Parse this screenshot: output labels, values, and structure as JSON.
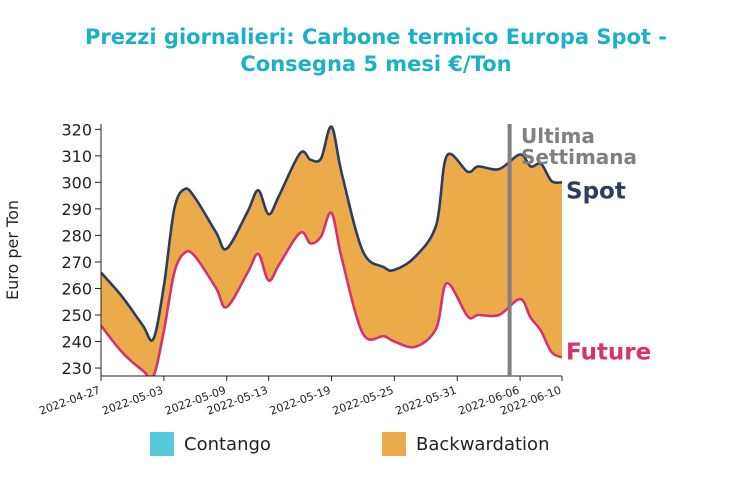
{
  "title_line1": "Prezzi giornalieri: Carbone termico Europa Spot -",
  "title_line2": "Consegna 5 mesi €/Ton",
  "colors": {
    "title": "#1ab0c8",
    "spot": "#2b3d63",
    "future": "#d6336c",
    "backwardation": "#ebab4b",
    "contango": "#58c8dc",
    "marker": "#808080"
  },
  "legend": {
    "contango": "Contango",
    "backwardation": "Backwardation"
  },
  "chart_data": {
    "type": "area",
    "ylabel": "Euro per Ton",
    "xlabel": "",
    "ylim": [
      227,
      322
    ],
    "xlim": [
      "2022-04-27",
      "2022-06-10"
    ],
    "yticks": [
      230,
      240,
      250,
      260,
      270,
      280,
      290,
      300,
      310,
      320
    ],
    "xticks": [
      "2022-04-27",
      "2022-05-03",
      "2022-05-09",
      "2022-05-13",
      "2022-05-19",
      "2022-05-25",
      "2022-05-31",
      "2022-06-06",
      "2022-06-10"
    ],
    "marker": {
      "x": "2022-06-05",
      "label_line1": "Ultima",
      "label_line2": "Settimana"
    },
    "series": [
      {
        "name": "Spot",
        "points": [
          [
            "2022-04-27",
            266
          ],
          [
            "2022-04-29",
            257
          ],
          [
            "2022-05-01",
            246
          ],
          [
            "2022-05-02",
            241
          ],
          [
            "2022-05-03",
            261
          ],
          [
            "2022-05-04",
            290
          ],
          [
            "2022-05-05",
            297.5
          ],
          [
            "2022-05-06",
            294
          ],
          [
            "2022-05-08",
            281
          ],
          [
            "2022-05-09",
            275
          ],
          [
            "2022-05-11",
            289
          ],
          [
            "2022-05-12",
            297
          ],
          [
            "2022-05-13",
            288
          ],
          [
            "2022-05-14",
            295
          ],
          [
            "2022-05-16",
            311
          ],
          [
            "2022-05-17",
            308.5
          ],
          [
            "2022-05-18",
            309
          ],
          [
            "2022-05-19",
            321
          ],
          [
            "2022-05-20",
            303
          ],
          [
            "2022-05-22",
            274
          ],
          [
            "2022-05-24",
            268
          ],
          [
            "2022-05-25",
            267
          ],
          [
            "2022-05-27",
            272
          ],
          [
            "2022-05-29",
            284
          ],
          [
            "2022-05-30",
            310
          ],
          [
            "2022-06-01",
            304
          ],
          [
            "2022-06-02",
            306
          ],
          [
            "2022-06-04",
            305
          ],
          [
            "2022-06-06",
            310.5
          ],
          [
            "2022-06-07",
            306
          ],
          [
            "2022-06-08",
            307
          ],
          [
            "2022-06-09",
            300.5
          ],
          [
            "2022-06-10",
            300
          ]
        ]
      },
      {
        "name": "Future",
        "points": [
          [
            "2022-04-27",
            246
          ],
          [
            "2022-04-29",
            236
          ],
          [
            "2022-05-01",
            229
          ],
          [
            "2022-05-02",
            227
          ],
          [
            "2022-05-03",
            244
          ],
          [
            "2022-05-04",
            266
          ],
          [
            "2022-05-05",
            273.5
          ],
          [
            "2022-05-06",
            272
          ],
          [
            "2022-05-08",
            260
          ],
          [
            "2022-05-09",
            253
          ],
          [
            "2022-05-11",
            266
          ],
          [
            "2022-05-12",
            273
          ],
          [
            "2022-05-13",
            263
          ],
          [
            "2022-05-14",
            269
          ],
          [
            "2022-05-16",
            281
          ],
          [
            "2022-05-17",
            277
          ],
          [
            "2022-05-18",
            279.5
          ],
          [
            "2022-05-19",
            288.5
          ],
          [
            "2022-05-20",
            271
          ],
          [
            "2022-05-22",
            243
          ],
          [
            "2022-05-24",
            242
          ],
          [
            "2022-05-25",
            240
          ],
          [
            "2022-05-27",
            238
          ],
          [
            "2022-05-29",
            245
          ],
          [
            "2022-05-30",
            262
          ],
          [
            "2022-06-01",
            249.5
          ],
          [
            "2022-06-02",
            250
          ],
          [
            "2022-06-04",
            250
          ],
          [
            "2022-06-06",
            256
          ],
          [
            "2022-06-07",
            249
          ],
          [
            "2022-06-08",
            244
          ],
          [
            "2022-06-09",
            236
          ],
          [
            "2022-06-10",
            234
          ]
        ]
      }
    ]
  }
}
